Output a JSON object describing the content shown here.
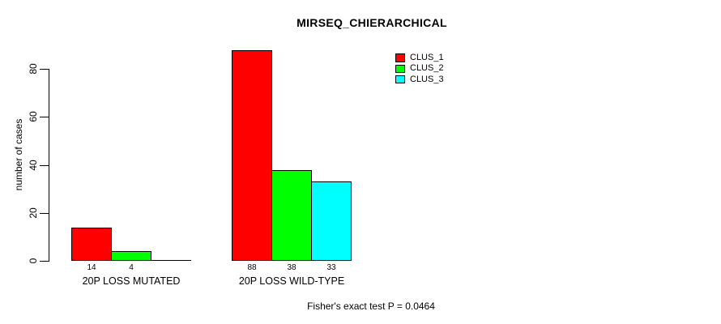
{
  "chart_data": {
    "type": "bar",
    "title": "MIRSEQ_CHIERARCHICAL",
    "xlabel": "",
    "ylabel": "number of cases",
    "categories": [
      "20P LOSS MUTATED",
      "20P LOSS WILD-TYPE"
    ],
    "series": [
      {
        "name": "CLUS_1",
        "color": "#FF0000",
        "values": [
          14,
          88
        ]
      },
      {
        "name": "CLUS_2",
        "color": "#00FF00",
        "values": [
          4,
          38
        ]
      },
      {
        "name": "CLUS_3",
        "color": "#00FFFF",
        "values": [
          0,
          33
        ]
      }
    ],
    "yticks": [
      0,
      20,
      40,
      60,
      80
    ],
    "ylim": [
      0,
      88
    ],
    "grid": false,
    "legend_position": "top-right-inside",
    "bar_value_labels_shown": [
      [
        14,
        4,
        null
      ],
      [
        88,
        38,
        33
      ]
    ],
    "annotation": "Fisher's exact test P = 0.0464",
    "background_color": "#FFFFFF",
    "axis_color": "#000000"
  }
}
